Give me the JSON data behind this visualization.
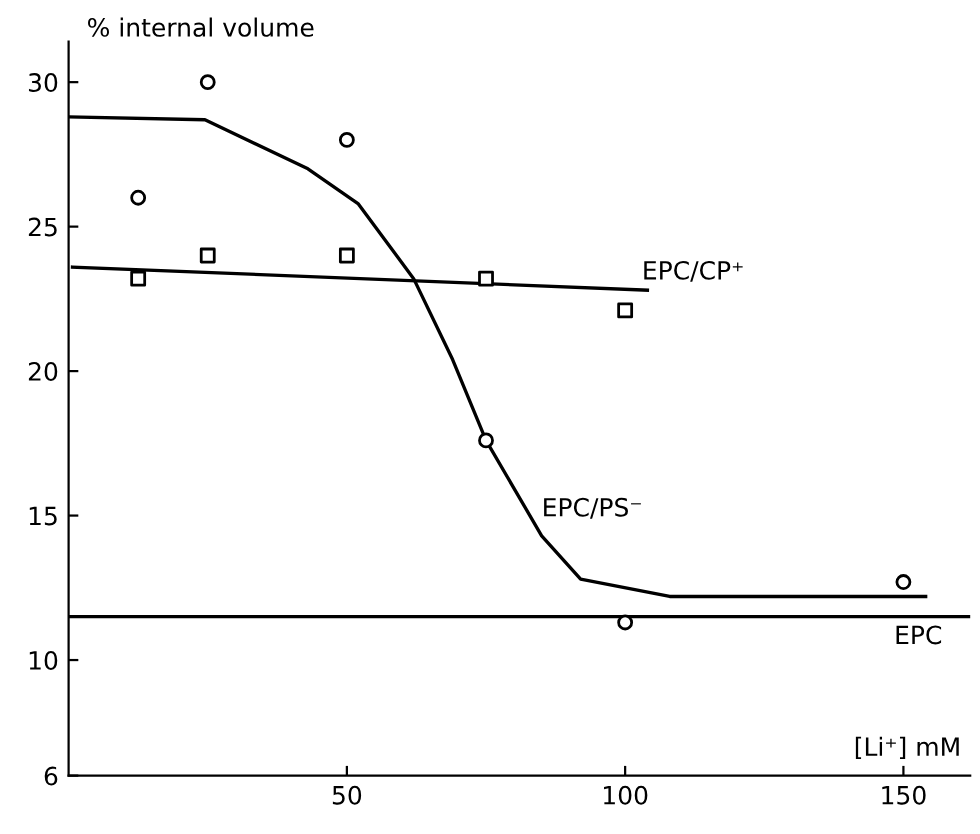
{
  "chart_data": {
    "type": "scatter",
    "ylabel": "% internal volume",
    "xlabel": "[Li⁺] mM",
    "xlim": [
      0,
      162
    ],
    "ylim": [
      6,
      31.4
    ],
    "xticks": [
      50,
      100,
      150
    ],
    "yticks": [
      6,
      10,
      15,
      20,
      25,
      30
    ],
    "grid": false,
    "legend": false,
    "series": [
      {
        "marker": "circle",
        "color": "#000000",
        "x": [
          12.5,
          25,
          50,
          75,
          100,
          150
        ],
        "values": [
          26,
          30,
          28,
          17.6,
          11.3,
          12.7
        ]
      },
      {
        "marker": "square",
        "color": "#000000",
        "x": [
          12.5,
          25,
          50,
          75,
          100
        ],
        "values": [
          23.2,
          24,
          24,
          23.2,
          22.1
        ]
      },
      {
        "type": "line",
        "marker": "none",
        "line_style": "solid",
        "color": "#000000",
        "x": [
          0,
          24.5,
          43,
          52,
          62,
          69,
          75,
          85,
          92,
          108,
          154
        ],
        "values": [
          28.8,
          28.7,
          27,
          25.8,
          23.2,
          20.4,
          17.6,
          14.3,
          12.8,
          12.2,
          12.2
        ]
      },
      {
        "type": "line",
        "marker": "none",
        "line_style": "solid",
        "color": "#000000",
        "x": [
          0.7,
          104
        ],
        "values": [
          23.6,
          22.8
        ]
      },
      {
        "type": "line",
        "marker": "none",
        "line_style": "solid",
        "color": "#000000",
        "x": [
          0,
          162
        ],
        "values": [
          11.5,
          11.5
        ]
      }
    ],
    "annotations": [
      {
        "text": "EPC/CP⁺",
        "x": 104,
        "y": 22.8
      },
      {
        "text": "EPC/PS⁻",
        "x": 86,
        "y": 14.6
      },
      {
        "text": "EPC",
        "x": 162,
        "y": 11.5
      }
    ]
  }
}
